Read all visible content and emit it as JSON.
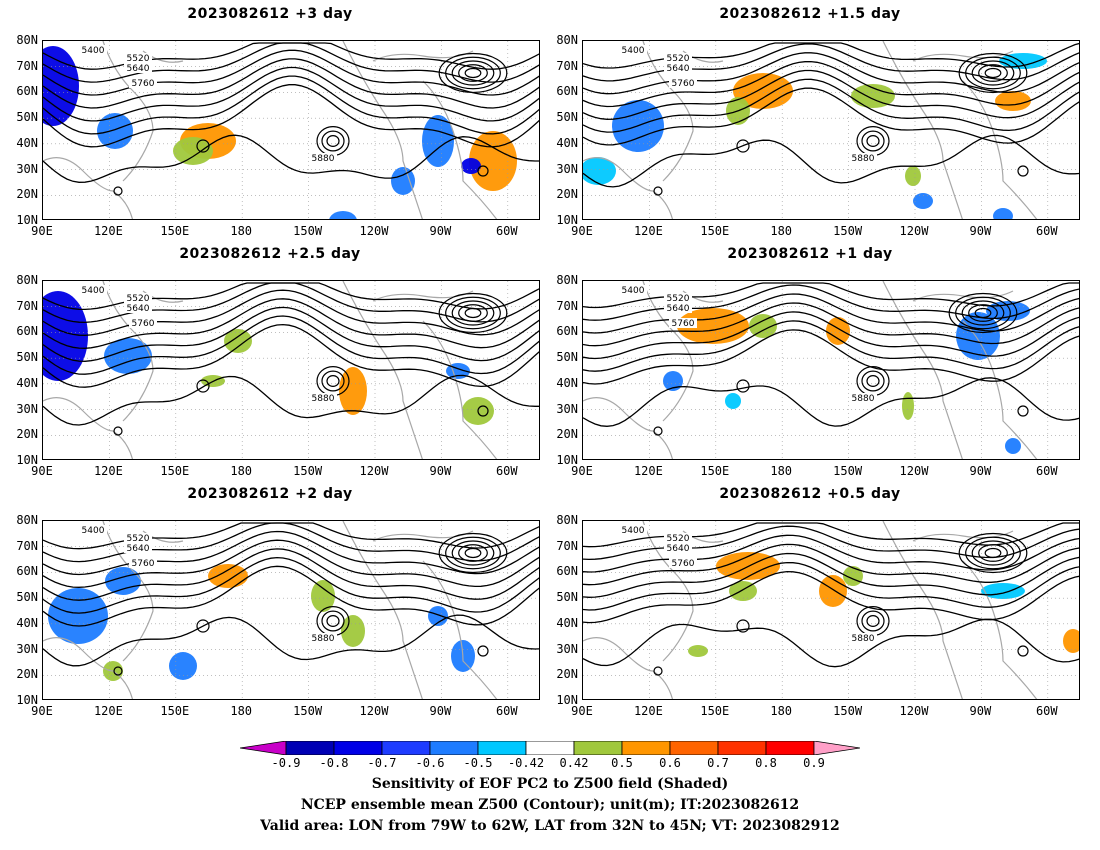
{
  "panels": [
    {
      "title": "2023082612  +3 day"
    },
    {
      "title": "2023082612  +1.5 day"
    },
    {
      "title": "2023082612  +2.5 day"
    },
    {
      "title": "2023082612  +1 day"
    },
    {
      "title": "2023082612  +2 day"
    },
    {
      "title": "2023082612  +0.5 day"
    }
  ],
  "lat_labels": [
    "80N",
    "70N",
    "60N",
    "50N",
    "40N",
    "30N",
    "20N",
    "10N"
  ],
  "lon_labels": [
    "90E",
    "120E",
    "150E",
    "180",
    "150W",
    "120W",
    "90W",
    "60W"
  ],
  "contour_labels": [
    "5400",
    "5520",
    "5640",
    "5760",
    "5880"
  ],
  "colorbar": {
    "ticks": [
      "-0.9",
      "-0.8",
      "-0.7",
      "-0.6",
      "-0.5",
      "-0.42",
      "0.42",
      "0.5",
      "0.6",
      "0.7",
      "0.8",
      "0.9"
    ],
    "colors": [
      "#c800c8",
      "#0000b4",
      "#0000e6",
      "#1e3cff",
      "#1e7cff",
      "#00c8ff",
      "#ffffff",
      "#a0c83c",
      "#ff9600",
      "#ff6400",
      "#ff3200",
      "#ff0000",
      "#ffa0c8"
    ]
  },
  "caption": {
    "line1": "Sensitivity of EOF PC2 to Z500 field (Shaded)",
    "line2": "NCEP ensemble mean Z500 (Contour); unit(m); IT:2023082612",
    "line3": "Valid area: LON from 79W to 62W, LAT from 32N to 45N; VT: 2023082912"
  },
  "colors": {
    "contour": "#000000",
    "coast": "#a8a8a8",
    "grid": "#999999",
    "negative": "#1e7cff",
    "negative_dark": "#0000e6",
    "negative_light": "#00c8ff",
    "positive": "#a0c83c",
    "positive_strong": "#ff9600",
    "positive_stronger": "#ff6400"
  }
}
